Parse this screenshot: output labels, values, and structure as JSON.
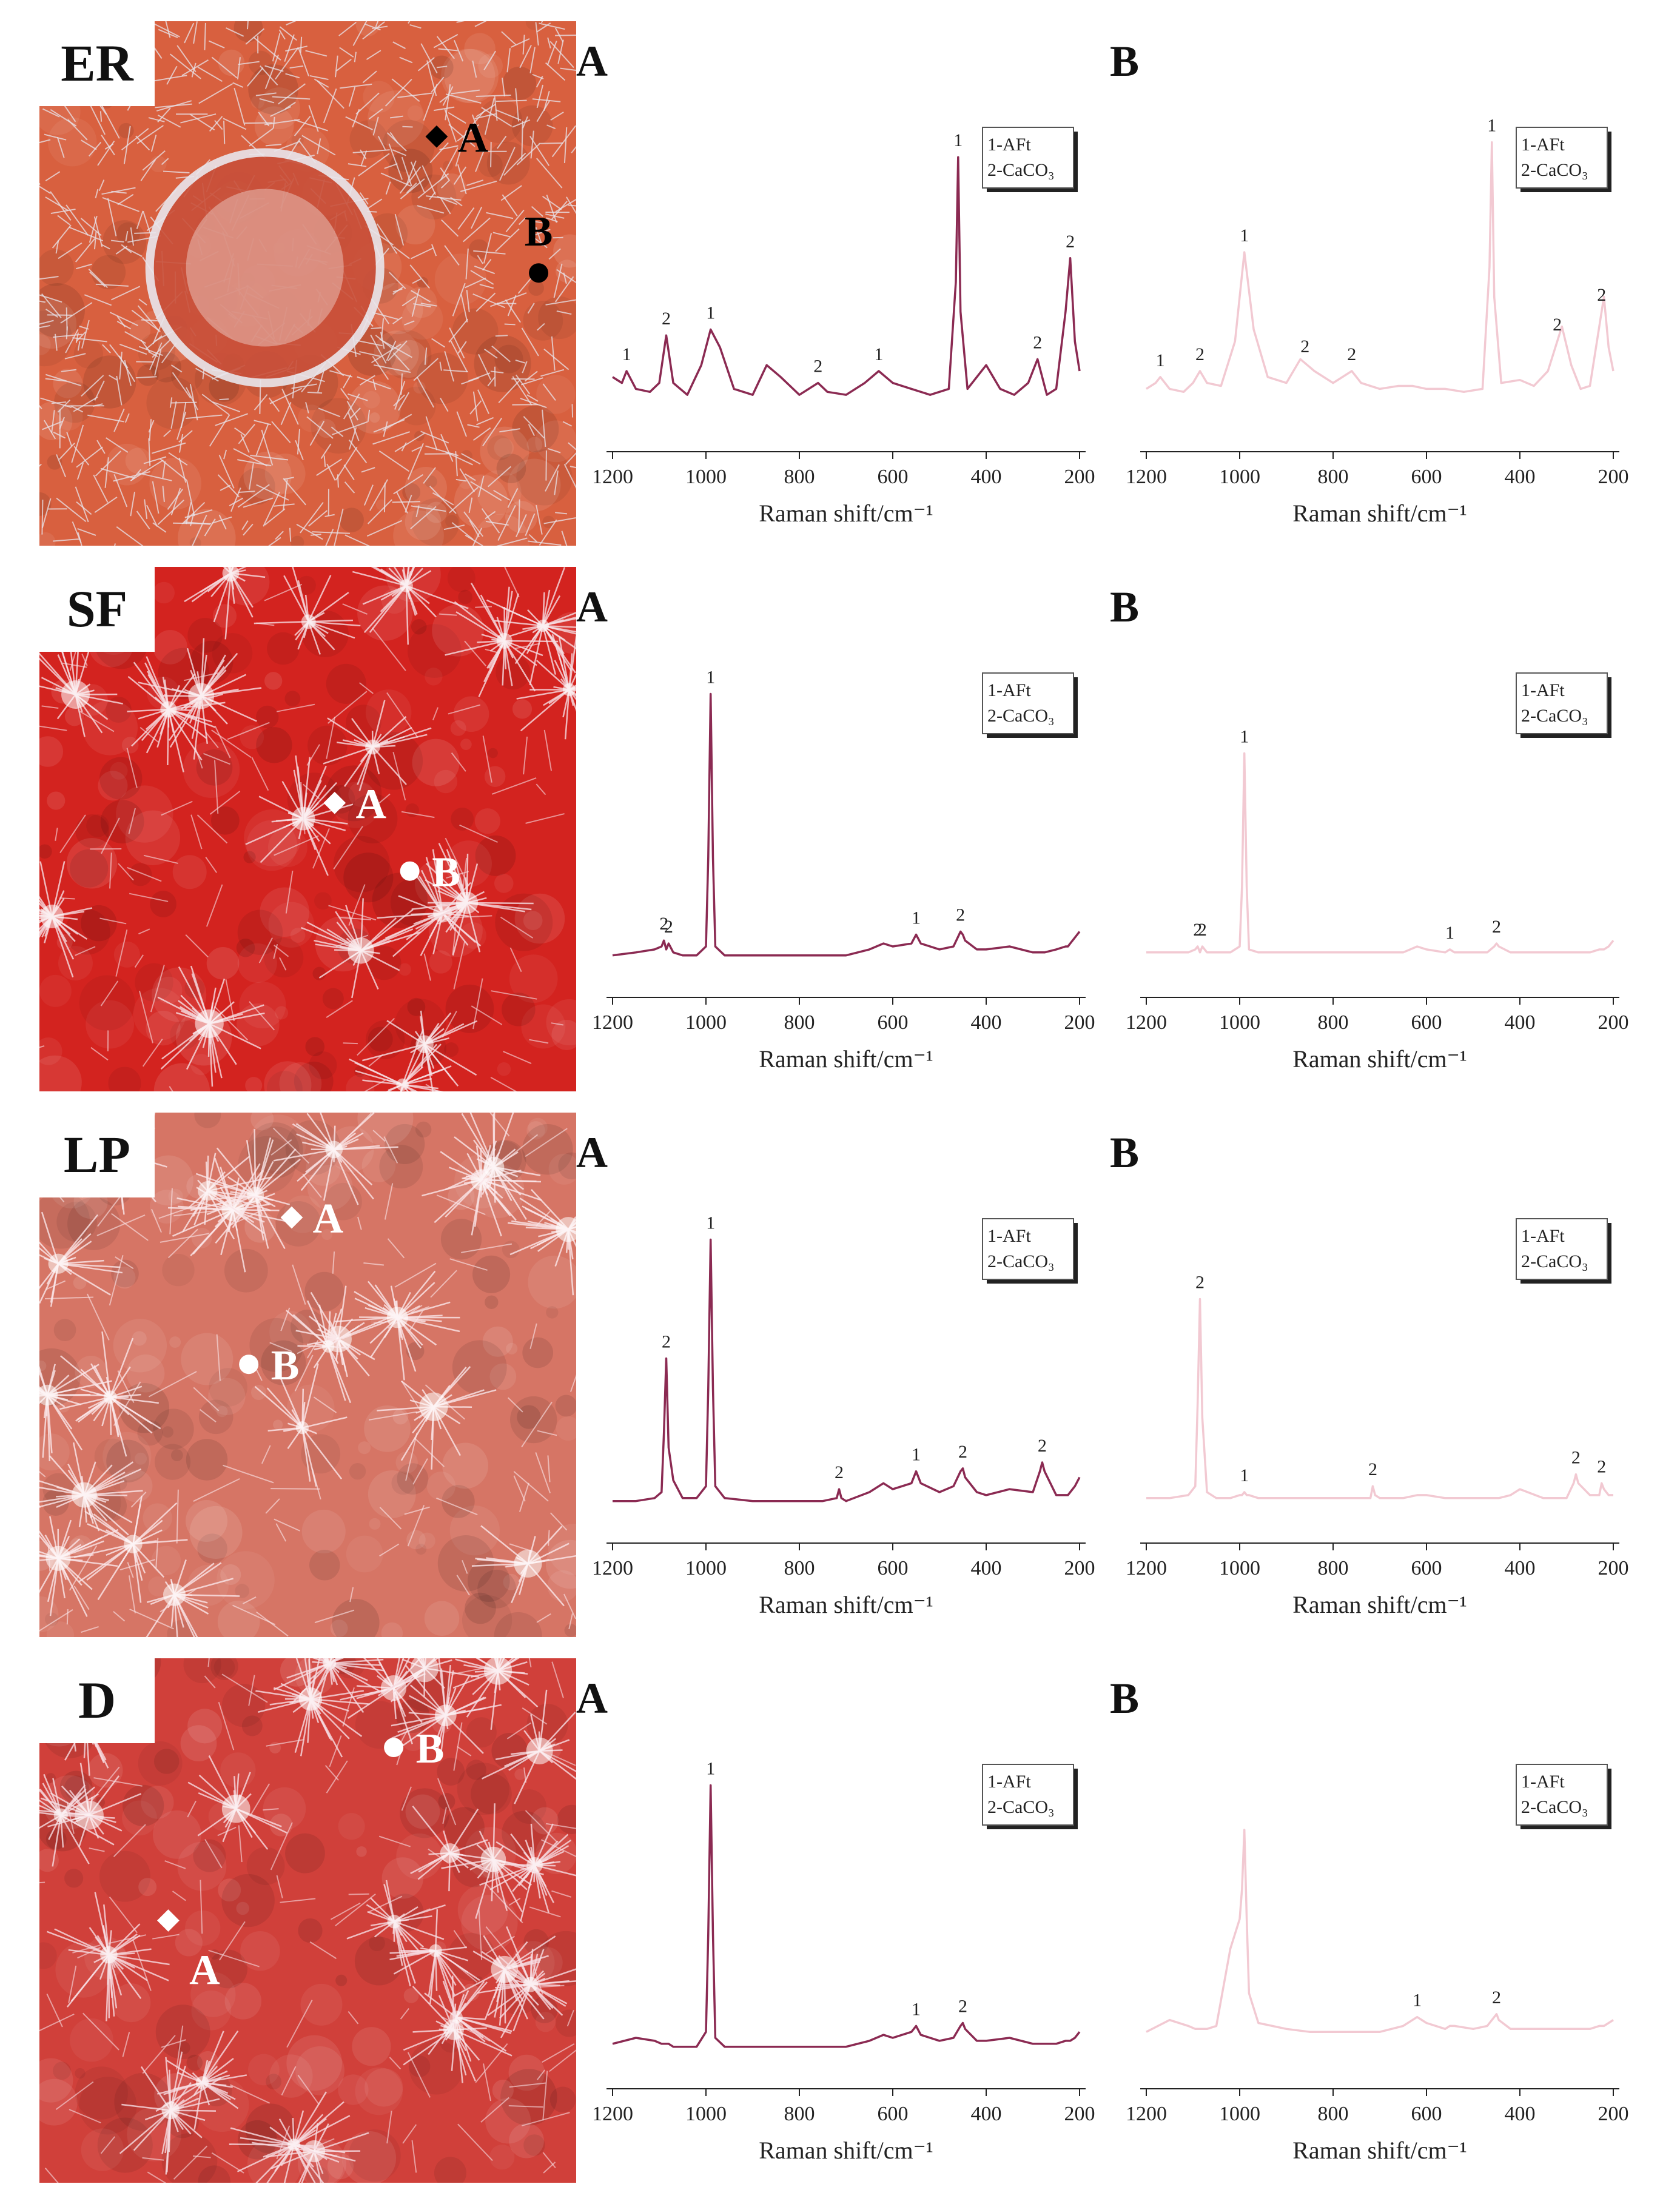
{
  "photos": [
    {
      "label": "ER",
      "points": [
        {
          "label": "A"
        },
        {
          "label": "B"
        }
      ]
    },
    {
      "label": "SF",
      "points": [
        {
          "label": "A"
        },
        {
          "label": "B"
        }
      ]
    },
    {
      "label": "LP",
      "points": [
        {
          "label": "A"
        },
        {
          "label": "B"
        }
      ]
    },
    {
      "label": "D",
      "points": [
        {
          "label": "A"
        },
        {
          "label": "B"
        }
      ]
    }
  ],
  "chart_data": [
    {
      "type": "line",
      "title": "A",
      "x_label": "Raman shift/cm⁻¹",
      "legend": [
        "1-AFt",
        "2-CaCO₃"
      ],
      "xlim": [
        1200,
        200
      ],
      "xticks": [
        1200,
        1000,
        800,
        600,
        400,
        200
      ],
      "ylim": [
        0,
        100
      ],
      "x": [
        1200,
        1180,
        1170,
        1150,
        1120,
        1100,
        1085,
        1070,
        1040,
        1010,
        990,
        970,
        940,
        900,
        870,
        840,
        800,
        760,
        740,
        700,
        660,
        630,
        600,
        560,
        520,
        480,
        465,
        460,
        455,
        440,
        400,
        370,
        340,
        310,
        290,
        270,
        250,
        230,
        220,
        210,
        200
      ],
      "series": [
        {
          "color": "#8b2a52",
          "values": [
            18,
            16,
            20,
            14,
            13,
            16,
            32,
            16,
            12,
            22,
            34,
            28,
            14,
            12,
            22,
            18,
            12,
            16,
            13,
            12,
            16,
            20,
            16,
            14,
            12,
            14,
            50,
            92,
            40,
            14,
            22,
            14,
            12,
            16,
            24,
            12,
            14,
            40,
            58,
            30,
            20
          ]
        }
      ],
      "annotations": [
        {
          "x": 1170,
          "label": "1"
        },
        {
          "x": 1085,
          "label": "2"
        },
        {
          "x": 990,
          "label": "1"
        },
        {
          "x": 760,
          "label": "2"
        },
        {
          "x": 630,
          "label": "1"
        },
        {
          "x": 460,
          "label": "1"
        },
        {
          "x": 290,
          "label": "2"
        },
        {
          "x": 220,
          "label": "2"
        }
      ]
    },
    {
      "type": "line",
      "title": "B",
      "x_label": "Raman shift/cm⁻¹",
      "legend": [
        "1-AFt",
        "2-CaCO₃"
      ],
      "xlim": [
        1200,
        200
      ],
      "xticks": [
        1200,
        1000,
        800,
        600,
        400,
        200
      ],
      "ylim": [
        0,
        100
      ],
      "x": [
        1200,
        1180,
        1170,
        1150,
        1120,
        1100,
        1085,
        1070,
        1040,
        1010,
        990,
        970,
        940,
        900,
        870,
        840,
        800,
        760,
        740,
        700,
        660,
        630,
        600,
        560,
        520,
        480,
        465,
        460,
        455,
        440,
        400,
        370,
        340,
        310,
        290,
        270,
        250,
        230,
        220,
        210,
        200
      ],
      "series": [
        {
          "color": "#f2c9d2",
          "values": [
            14,
            16,
            18,
            14,
            13,
            16,
            20,
            16,
            15,
            30,
            60,
            34,
            18,
            16,
            24,
            20,
            16,
            20,
            16,
            14,
            15,
            15,
            14,
            14,
            13,
            14,
            55,
            97,
            45,
            16,
            17,
            15,
            20,
            35,
            22,
            14,
            15,
            35,
            45,
            28,
            20
          ]
        }
      ],
      "annotations": [
        {
          "x": 1170,
          "label": "1"
        },
        {
          "x": 1085,
          "label": "2"
        },
        {
          "x": 990,
          "label": "1"
        },
        {
          "x": 860,
          "label": "2"
        },
        {
          "x": 760,
          "label": "2"
        },
        {
          "x": 460,
          "label": "1"
        },
        {
          "x": 320,
          "label": "2"
        },
        {
          "x": 225,
          "label": "2"
        }
      ]
    },
    {
      "type": "line",
      "title": "A",
      "x_label": "Raman shift/cm⁻¹",
      "legend": [
        "1-AFt",
        "2-CaCO₃"
      ],
      "xlim": [
        1200,
        200
      ],
      "xticks": [
        1200,
        1000,
        800,
        600,
        400,
        200
      ],
      "ylim": [
        0,
        100
      ],
      "x": [
        1200,
        1150,
        1110,
        1095,
        1090,
        1085,
        1080,
        1070,
        1050,
        1020,
        1000,
        995,
        990,
        985,
        980,
        960,
        900,
        850,
        800,
        750,
        720,
        715,
        710,
        700,
        650,
        620,
        600,
        560,
        550,
        540,
        500,
        470,
        455,
        450,
        445,
        420,
        400,
        350,
        300,
        285,
        280,
        275,
        250,
        230,
        225,
        220,
        210,
        200
      ],
      "series": [
        {
          "color": "#8b2a52",
          "values": [
            7,
            8,
            9,
            10,
            12,
            9,
            11,
            8,
            7,
            7,
            10,
            40,
            95,
            40,
            10,
            7,
            7,
            7,
            7,
            7,
            7,
            7,
            7,
            7,
            9,
            11,
            10,
            11,
            14,
            11,
            9,
            10,
            15,
            14,
            12,
            9,
            9,
            10,
            8,
            8,
            8,
            8,
            9,
            10,
            10,
            11,
            13,
            15
          ]
        }
      ],
      "annotations": [
        {
          "x": 1090,
          "label": "2"
        },
        {
          "x": 1080,
          "label": "2"
        },
        {
          "x": 990,
          "label": "1"
        },
        {
          "x": 550,
          "label": "1"
        },
        {
          "x": 455,
          "label": "2"
        }
      ]
    },
    {
      "type": "line",
      "title": "B",
      "x_label": "Raman shift/cm⁻¹",
      "legend": [
        "1-AFt",
        "2-CaCO₃"
      ],
      "xlim": [
        1200,
        200
      ],
      "xticks": [
        1200,
        1000,
        800,
        600,
        400,
        200
      ],
      "ylim": [
        0,
        100
      ],
      "x": [
        1200,
        1150,
        1110,
        1095,
        1090,
        1085,
        1080,
        1070,
        1050,
        1020,
        1000,
        995,
        990,
        985,
        980,
        960,
        900,
        850,
        800,
        750,
        720,
        715,
        710,
        700,
        650,
        620,
        600,
        560,
        550,
        540,
        500,
        470,
        455,
        450,
        445,
        420,
        400,
        350,
        300,
        285,
        280,
        275,
        250,
        230,
        225,
        220,
        210,
        200
      ],
      "series": [
        {
          "color": "#f2c9d2",
          "values": [
            8,
            8,
            8,
            9,
            10,
            8,
            10,
            8,
            8,
            8,
            10,
            30,
            75,
            30,
            9,
            8,
            8,
            8,
            8,
            8,
            8,
            8,
            8,
            8,
            8,
            10,
            9,
            8,
            9,
            8,
            8,
            8,
            10,
            11,
            10,
            8,
            8,
            8,
            8,
            8,
            8,
            8,
            8,
            9,
            9,
            9,
            10,
            12
          ]
        }
      ],
      "annotations": [
        {
          "x": 1090,
          "label": "2"
        },
        {
          "x": 1080,
          "label": "2"
        },
        {
          "x": 990,
          "label": "1"
        },
        {
          "x": 550,
          "label": "1"
        },
        {
          "x": 450,
          "label": "2"
        }
      ]
    },
    {
      "type": "line",
      "title": "A",
      "x_label": "Raman shift/cm⁻¹",
      "legend": [
        "1-AFt",
        "2-CaCO₃"
      ],
      "xlim": [
        1200,
        200
      ],
      "xticks": [
        1200,
        1000,
        800,
        600,
        400,
        200
      ],
      "ylim": [
        0,
        100
      ],
      "x": [
        1200,
        1150,
        1110,
        1095,
        1090,
        1085,
        1080,
        1070,
        1050,
        1020,
        1000,
        995,
        990,
        985,
        980,
        960,
        900,
        850,
        800,
        750,
        720,
        715,
        710,
        700,
        650,
        620,
        600,
        560,
        550,
        540,
        500,
        470,
        455,
        450,
        445,
        420,
        400,
        350,
        300,
        285,
        280,
        275,
        250,
        230,
        225,
        220,
        210,
        200
      ],
      "series": [
        {
          "color": "#8b2a52",
          "values": [
            7,
            7,
            8,
            10,
            30,
            55,
            25,
            14,
            8,
            8,
            12,
            45,
            95,
            45,
            12,
            8,
            7,
            7,
            7,
            7,
            8,
            11,
            8,
            7,
            10,
            13,
            11,
            13,
            17,
            13,
            10,
            12,
            17,
            18,
            15,
            10,
            9,
            11,
            10,
            17,
            20,
            17,
            9,
            9,
            9,
            10,
            12,
            15
          ]
        }
      ],
      "annotations": [
        {
          "x": 1085,
          "label": "2"
        },
        {
          "x": 990,
          "label": "1"
        },
        {
          "x": 715,
          "label": "2"
        },
        {
          "x": 550,
          "label": "1"
        },
        {
          "x": 450,
          "label": "2"
        },
        {
          "x": 280,
          "label": "2"
        }
      ]
    },
    {
      "type": "line",
      "title": "B",
      "x_label": "Raman shift/cm⁻¹",
      "legend": [
        "1-AFt",
        "2-CaCO₃"
      ],
      "xlim": [
        1200,
        200
      ],
      "xticks": [
        1200,
        1000,
        800,
        600,
        400,
        200
      ],
      "ylim": [
        0,
        100
      ],
      "x": [
        1200,
        1150,
        1110,
        1095,
        1090,
        1085,
        1080,
        1070,
        1050,
        1020,
        1000,
        995,
        990,
        985,
        980,
        960,
        900,
        850,
        800,
        750,
        720,
        715,
        710,
        700,
        650,
        620,
        600,
        560,
        550,
        540,
        500,
        470,
        455,
        450,
        445,
        420,
        400,
        350,
        300,
        285,
        280,
        275,
        250,
        230,
        225,
        220,
        210,
        200
      ],
      "series": [
        {
          "color": "#f2c9d2",
          "values": [
            8,
            8,
            9,
            12,
            40,
            75,
            35,
            10,
            8,
            8,
            9,
            9,
            10,
            9,
            9,
            8,
            8,
            8,
            8,
            8,
            8,
            12,
            9,
            8,
            8,
            9,
            9,
            8,
            8,
            8,
            8,
            8,
            8,
            8,
            8,
            9,
            11,
            8,
            8,
            13,
            16,
            13,
            9,
            9,
            13,
            11,
            9,
            9
          ]
        }
      ],
      "annotations": [
        {
          "x": 1085,
          "label": "2"
        },
        {
          "x": 990,
          "label": "1"
        },
        {
          "x": 715,
          "label": "2"
        },
        {
          "x": 280,
          "label": "2"
        },
        {
          "x": 225,
          "label": "2"
        }
      ]
    },
    {
      "type": "line",
      "title": "A",
      "x_label": "Raman shift/cm⁻¹",
      "legend": [
        "1-AFt",
        "2-CaCO₃"
      ],
      "xlim": [
        1200,
        200
      ],
      "xticks": [
        1200,
        1000,
        800,
        600,
        400,
        200
      ],
      "ylim": [
        0,
        100
      ],
      "x": [
        1200,
        1150,
        1110,
        1095,
        1090,
        1085,
        1080,
        1070,
        1050,
        1020,
        1000,
        995,
        990,
        985,
        980,
        960,
        900,
        850,
        800,
        750,
        720,
        715,
        710,
        700,
        650,
        620,
        600,
        560,
        550,
        540,
        500,
        470,
        455,
        450,
        445,
        420,
        400,
        350,
        300,
        285,
        280,
        275,
        250,
        230,
        225,
        220,
        210,
        200
      ],
      "series": [
        {
          "color": "#8b2a52",
          "values": [
            8,
            10,
            9,
            8,
            8,
            8,
            8,
            7,
            7,
            7,
            12,
            45,
            95,
            45,
            10,
            7,
            7,
            7,
            7,
            7,
            7,
            7,
            7,
            7,
            9,
            11,
            10,
            12,
            14,
            11,
            9,
            10,
            14,
            15,
            13,
            9,
            9,
            10,
            8,
            8,
            8,
            8,
            8,
            9,
            9,
            9,
            10,
            12
          ]
        }
      ],
      "annotations": [
        {
          "x": 990,
          "label": "1"
        },
        {
          "x": 550,
          "label": "1"
        },
        {
          "x": 450,
          "label": "2"
        }
      ]
    },
    {
      "type": "line",
      "title": "B",
      "x_label": "Raman shift/cm⁻¹",
      "legend": [
        "1-AFt",
        "2-CaCO₃"
      ],
      "xlim": [
        1200,
        200
      ],
      "xticks": [
        1200,
        1000,
        800,
        600,
        400,
        200
      ],
      "ylim": [
        0,
        100
      ],
      "x": [
        1200,
        1150,
        1110,
        1095,
        1090,
        1085,
        1080,
        1070,
        1050,
        1020,
        1000,
        995,
        990,
        985,
        980,
        960,
        900,
        850,
        800,
        750,
        720,
        715,
        710,
        700,
        650,
        620,
        600,
        560,
        550,
        540,
        500,
        470,
        455,
        450,
        445,
        420,
        400,
        350,
        300,
        285,
        280,
        275,
        250,
        230,
        225,
        220,
        210,
        200
      ],
      "series": [
        {
          "color": "#f2c9d2",
          "values": [
            12,
            16,
            14,
            13,
            13,
            13,
            13,
            13,
            14,
            40,
            50,
            60,
            80,
            50,
            25,
            15,
            13,
            12,
            12,
            12,
            12,
            12,
            12,
            12,
            14,
            17,
            15,
            13,
            14,
            14,
            13,
            14,
            17,
            18,
            16,
            13,
            13,
            13,
            13,
            13,
            13,
            13,
            13,
            14,
            14,
            14,
            15,
            16
          ]
        }
      ],
      "annotations": [
        {
          "x": 620,
          "label": "1"
        },
        {
          "x": 450,
          "label": "2"
        }
      ]
    }
  ]
}
